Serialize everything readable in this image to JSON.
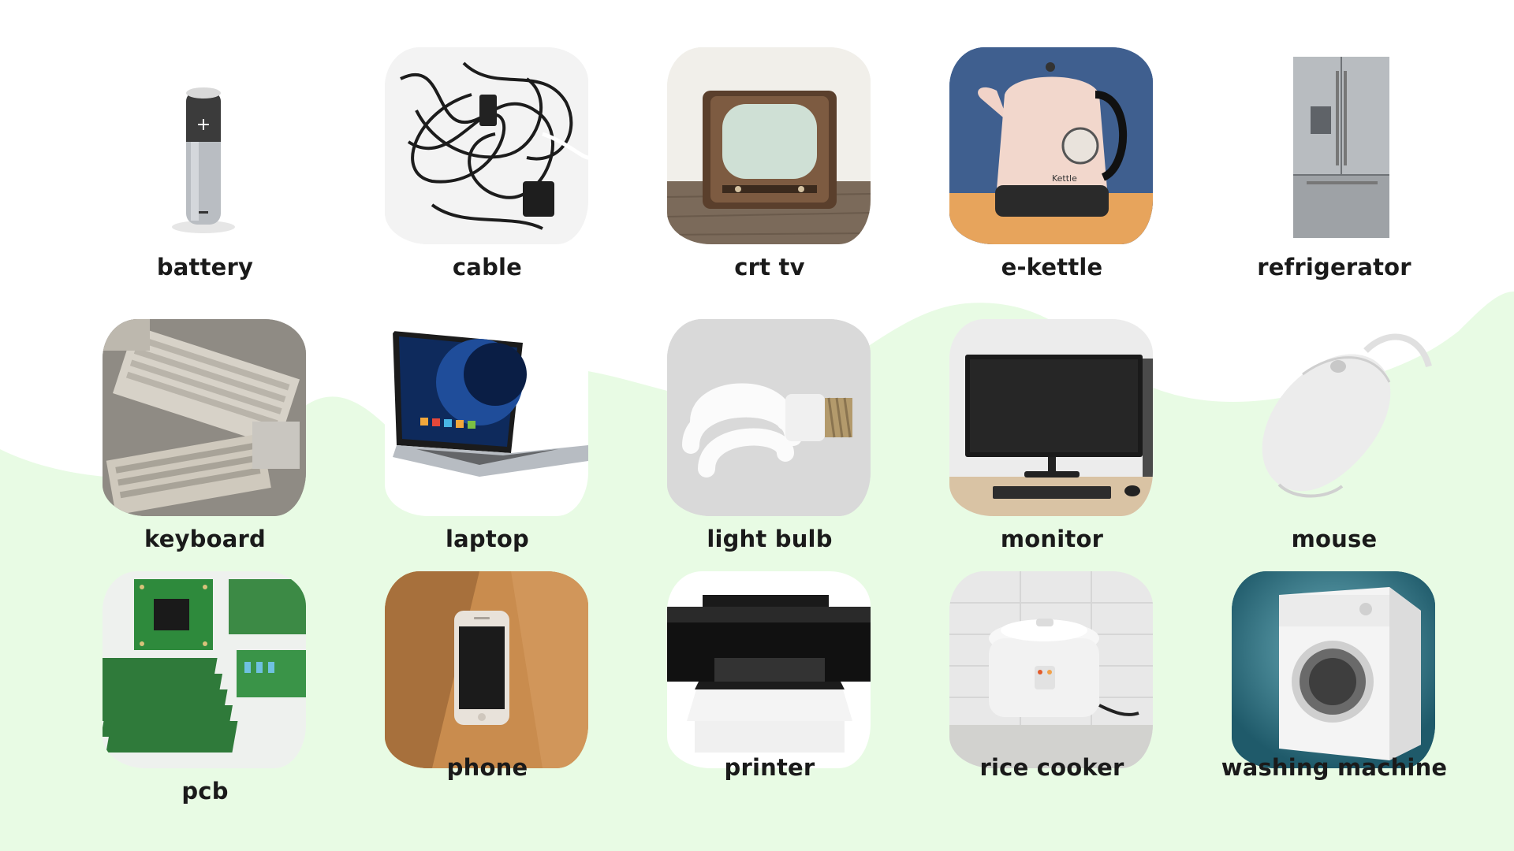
{
  "colors": {
    "background": "#ffffff",
    "wave": "#e8fbe4",
    "label": "#1a1a1a"
  },
  "items": [
    {
      "label": "battery",
      "icon": "battery-icon"
    },
    {
      "label": "cable",
      "icon": "cable-icon"
    },
    {
      "label": "crt tv",
      "icon": "crt-tv-icon"
    },
    {
      "label": "e-kettle",
      "icon": "kettle-icon"
    },
    {
      "label": "refrigerator",
      "icon": "refrigerator-icon"
    },
    {
      "label": "keyboard",
      "icon": "keyboard-icon"
    },
    {
      "label": "laptop",
      "icon": "laptop-icon"
    },
    {
      "label": "light bulb",
      "icon": "light-bulb-icon"
    },
    {
      "label": "monitor",
      "icon": "monitor-icon"
    },
    {
      "label": "mouse",
      "icon": "mouse-icon"
    },
    {
      "label": "pcb",
      "icon": "pcb-icon"
    },
    {
      "label": "phone",
      "icon": "phone-icon"
    },
    {
      "label": "printer",
      "icon": "printer-icon"
    },
    {
      "label": "rice cooker",
      "icon": "rice-cooker-icon"
    },
    {
      "label": "washing machine",
      "icon": "washing-machine-icon"
    }
  ]
}
